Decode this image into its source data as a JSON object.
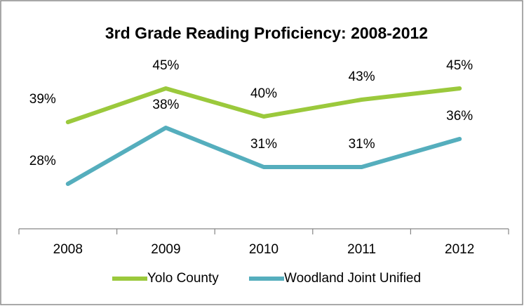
{
  "chart_data": {
    "type": "line",
    "title": "3rd Grade Reading Proficiency: 2008-2012",
    "categories": [
      "2008",
      "2009",
      "2010",
      "2011",
      "2012"
    ],
    "series": [
      {
        "name": "Yolo County",
        "color": "#9bc93c",
        "values": [
          39,
          45,
          40,
          43,
          45
        ],
        "value_labels": [
          "39%",
          "45%",
          "40%",
          "43%",
          "45%"
        ]
      },
      {
        "name": "Woodland Joint Unified",
        "color": "#55aebd",
        "values": [
          28,
          38,
          31,
          31,
          36
        ],
        "value_labels": [
          "28%",
          "38%",
          "31%",
          "31%",
          "36%"
        ]
      }
    ],
    "ylim": [
      20,
      50
    ]
  }
}
